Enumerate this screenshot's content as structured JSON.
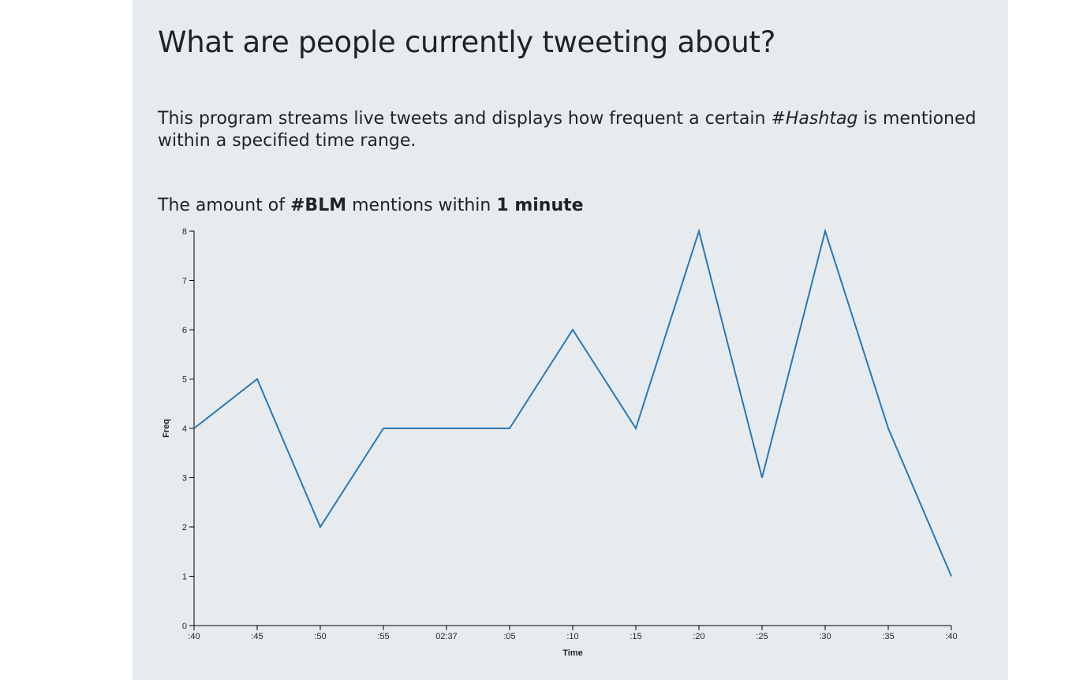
{
  "header": {
    "title": "What are people currently tweeting about?",
    "description_before": "This program streams live tweets and displays how frequent a certain ",
    "description_hashtag": "#Hashtag",
    "description_after": " is mentioned within a specified time range.",
    "subtitle_prefix": "The amount of ",
    "subtitle_hashtag": "#BLM",
    "subtitle_middle": " mentions within ",
    "subtitle_range": "1 minute"
  },
  "colors": {
    "line": "#2878b5",
    "panel": "#e8ebee",
    "axis": "#000000"
  },
  "chart_data": {
    "type": "line",
    "title": "",
    "xlabel": "Time",
    "ylabel": "Freq",
    "x": [
      ":40",
      ":45",
      ":50",
      ":55",
      "02:37",
      ":05",
      ":10",
      ":15",
      ":20",
      ":25",
      ":30",
      ":35",
      ":40"
    ],
    "series": [
      {
        "values": [
          4,
          5,
          2,
          4,
          4,
          4,
          6,
          4,
          8,
          3,
          8,
          4,
          1
        ]
      }
    ],
    "yticks": [
      "0",
      "1",
      "2",
      "3",
      "4",
      "5",
      "6",
      "7",
      "8"
    ],
    "ylim": [
      0,
      8
    ],
    "grid": false
  }
}
